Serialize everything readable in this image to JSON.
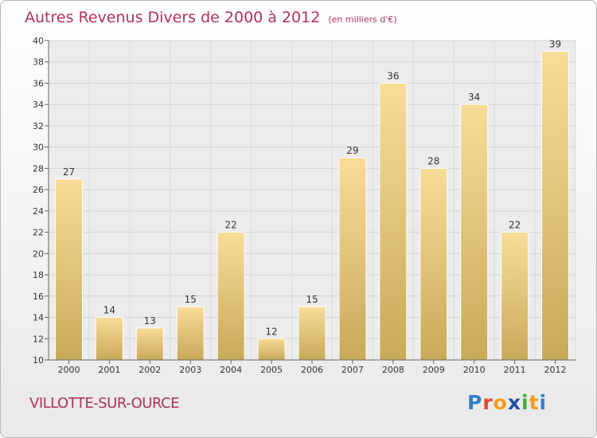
{
  "header": {
    "title": "Autres Revenus Divers de 2000 à 2012",
    "subtitle": "(en milliers d'€)"
  },
  "footer": {
    "town": "VILLOTTE-SUR-OURCE",
    "logo": "Proxiti"
  },
  "colors": {
    "title": "#b03060",
    "bar_light": "#f8dc98",
    "bar_dark": "#c9a95a"
  },
  "chart_data": {
    "type": "bar",
    "title": "Autres Revenus Divers de 2000 à 2012",
    "subtitle": "(en milliers d'€)",
    "categories": [
      "2000",
      "2001",
      "2002",
      "2003",
      "2004",
      "2005",
      "2006",
      "2007",
      "2008",
      "2009",
      "2010",
      "2011",
      "2012"
    ],
    "values": [
      27,
      14,
      13,
      15,
      22,
      12,
      15,
      29,
      36,
      28,
      34,
      22,
      39
    ],
    "ylim": [
      10,
      40
    ],
    "yticks": [
      10,
      12,
      14,
      16,
      18,
      20,
      22,
      24,
      26,
      28,
      30,
      32,
      34,
      36,
      38,
      40
    ],
    "grid": true,
    "data_labels": true
  }
}
